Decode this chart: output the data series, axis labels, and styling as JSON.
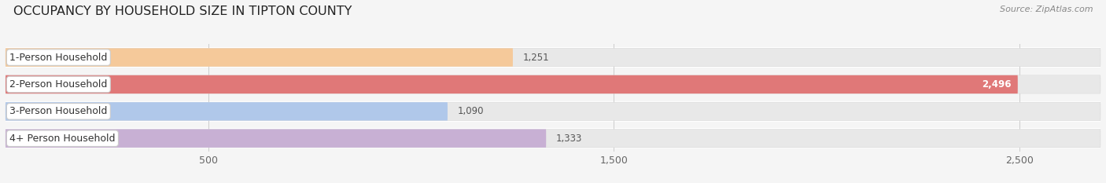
{
  "title": "OCCUPANCY BY HOUSEHOLD SIZE IN TIPTON COUNTY",
  "source": "Source: ZipAtlas.com",
  "categories": [
    "1-Person Household",
    "2-Person Household",
    "3-Person Household",
    "4+ Person Household"
  ],
  "values": [
    1251,
    2496,
    1090,
    1333
  ],
  "bar_colors": [
    "#f5c99a",
    "#e07878",
    "#b0c8ea",
    "#c8b0d4"
  ],
  "xlim": [
    0,
    2700
  ],
  "xticks": [
    500,
    1500,
    2500
  ],
  "background_color": "#f5f5f5",
  "bar_bg_color": "#e8e8e8",
  "separator_color": "#ffffff",
  "title_fontsize": 11.5,
  "source_fontsize": 8,
  "label_fontsize": 9,
  "value_fontsize": 8.5,
  "tick_fontsize": 9
}
